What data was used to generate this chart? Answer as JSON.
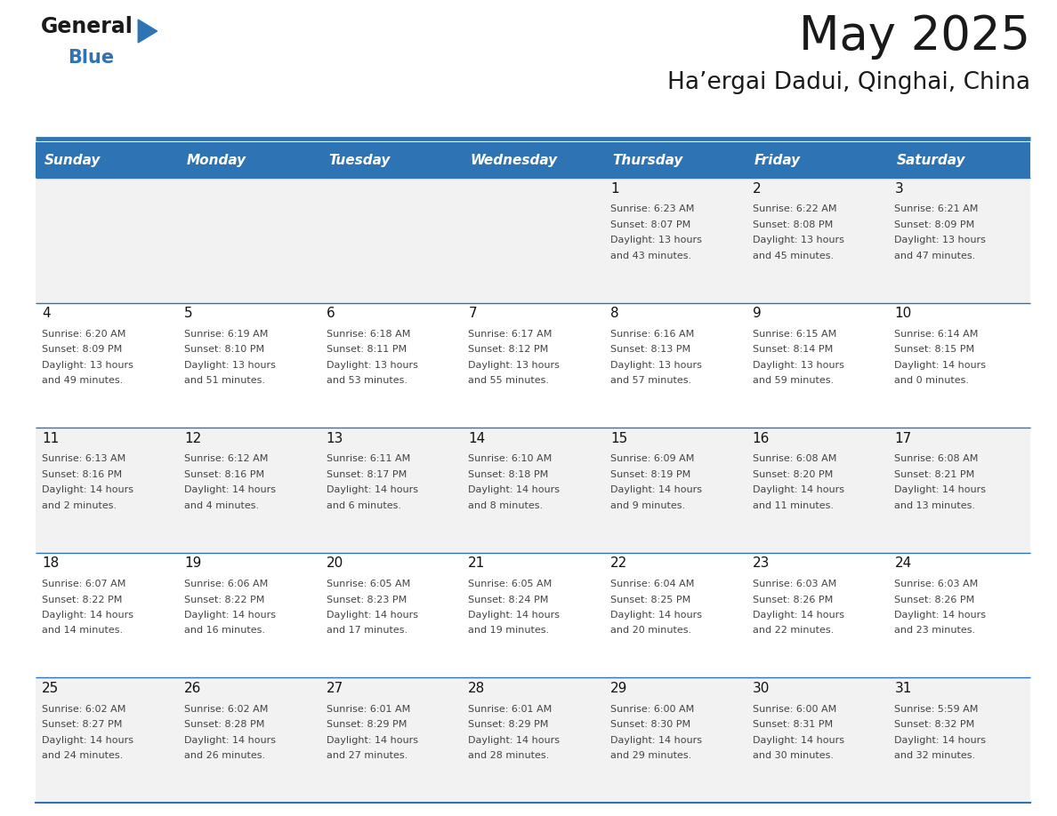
{
  "title": "May 2025",
  "subtitle": "Ha’ergai Dadui, Qinghai, China",
  "days_of_week": [
    "Sunday",
    "Monday",
    "Tuesday",
    "Wednesday",
    "Thursday",
    "Friday",
    "Saturday"
  ],
  "header_bg": "#2E74B5",
  "header_text_color": "#FFFFFF",
  "row_bg_odd": "#F2F2F2",
  "row_bg_even": "#FFFFFF",
  "separator_color": "#2E74B5",
  "background_color": "#FFFFFF",
  "title_color": "#1a1a1a",
  "subtitle_color": "#1a1a1a",
  "logo_text_color": "#1a1a1a",
  "logo_blue_color": "#2E74B5",
  "calendar_data": [
    [
      {
        "day": "",
        "info": ""
      },
      {
        "day": "",
        "info": ""
      },
      {
        "day": "",
        "info": ""
      },
      {
        "day": "",
        "info": ""
      },
      {
        "day": "1",
        "info": "Sunrise: 6:23 AM\nSunset: 8:07 PM\nDaylight: 13 hours\nand 43 minutes."
      },
      {
        "day": "2",
        "info": "Sunrise: 6:22 AM\nSunset: 8:08 PM\nDaylight: 13 hours\nand 45 minutes."
      },
      {
        "day": "3",
        "info": "Sunrise: 6:21 AM\nSunset: 8:09 PM\nDaylight: 13 hours\nand 47 minutes."
      }
    ],
    [
      {
        "day": "4",
        "info": "Sunrise: 6:20 AM\nSunset: 8:09 PM\nDaylight: 13 hours\nand 49 minutes."
      },
      {
        "day": "5",
        "info": "Sunrise: 6:19 AM\nSunset: 8:10 PM\nDaylight: 13 hours\nand 51 minutes."
      },
      {
        "day": "6",
        "info": "Sunrise: 6:18 AM\nSunset: 8:11 PM\nDaylight: 13 hours\nand 53 minutes."
      },
      {
        "day": "7",
        "info": "Sunrise: 6:17 AM\nSunset: 8:12 PM\nDaylight: 13 hours\nand 55 minutes."
      },
      {
        "day": "8",
        "info": "Sunrise: 6:16 AM\nSunset: 8:13 PM\nDaylight: 13 hours\nand 57 minutes."
      },
      {
        "day": "9",
        "info": "Sunrise: 6:15 AM\nSunset: 8:14 PM\nDaylight: 13 hours\nand 59 minutes."
      },
      {
        "day": "10",
        "info": "Sunrise: 6:14 AM\nSunset: 8:15 PM\nDaylight: 14 hours\nand 0 minutes."
      }
    ],
    [
      {
        "day": "11",
        "info": "Sunrise: 6:13 AM\nSunset: 8:16 PM\nDaylight: 14 hours\nand 2 minutes."
      },
      {
        "day": "12",
        "info": "Sunrise: 6:12 AM\nSunset: 8:16 PM\nDaylight: 14 hours\nand 4 minutes."
      },
      {
        "day": "13",
        "info": "Sunrise: 6:11 AM\nSunset: 8:17 PM\nDaylight: 14 hours\nand 6 minutes."
      },
      {
        "day": "14",
        "info": "Sunrise: 6:10 AM\nSunset: 8:18 PM\nDaylight: 14 hours\nand 8 minutes."
      },
      {
        "day": "15",
        "info": "Sunrise: 6:09 AM\nSunset: 8:19 PM\nDaylight: 14 hours\nand 9 minutes."
      },
      {
        "day": "16",
        "info": "Sunrise: 6:08 AM\nSunset: 8:20 PM\nDaylight: 14 hours\nand 11 minutes."
      },
      {
        "day": "17",
        "info": "Sunrise: 6:08 AM\nSunset: 8:21 PM\nDaylight: 14 hours\nand 13 minutes."
      }
    ],
    [
      {
        "day": "18",
        "info": "Sunrise: 6:07 AM\nSunset: 8:22 PM\nDaylight: 14 hours\nand 14 minutes."
      },
      {
        "day": "19",
        "info": "Sunrise: 6:06 AM\nSunset: 8:22 PM\nDaylight: 14 hours\nand 16 minutes."
      },
      {
        "day": "20",
        "info": "Sunrise: 6:05 AM\nSunset: 8:23 PM\nDaylight: 14 hours\nand 17 minutes."
      },
      {
        "day": "21",
        "info": "Sunrise: 6:05 AM\nSunset: 8:24 PM\nDaylight: 14 hours\nand 19 minutes."
      },
      {
        "day": "22",
        "info": "Sunrise: 6:04 AM\nSunset: 8:25 PM\nDaylight: 14 hours\nand 20 minutes."
      },
      {
        "day": "23",
        "info": "Sunrise: 6:03 AM\nSunset: 8:26 PM\nDaylight: 14 hours\nand 22 minutes."
      },
      {
        "day": "24",
        "info": "Sunrise: 6:03 AM\nSunset: 8:26 PM\nDaylight: 14 hours\nand 23 minutes."
      }
    ],
    [
      {
        "day": "25",
        "info": "Sunrise: 6:02 AM\nSunset: 8:27 PM\nDaylight: 14 hours\nand 24 minutes."
      },
      {
        "day": "26",
        "info": "Sunrise: 6:02 AM\nSunset: 8:28 PM\nDaylight: 14 hours\nand 26 minutes."
      },
      {
        "day": "27",
        "info": "Sunrise: 6:01 AM\nSunset: 8:29 PM\nDaylight: 14 hours\nand 27 minutes."
      },
      {
        "day": "28",
        "info": "Sunrise: 6:01 AM\nSunset: 8:29 PM\nDaylight: 14 hours\nand 28 minutes."
      },
      {
        "day": "29",
        "info": "Sunrise: 6:00 AM\nSunset: 8:30 PM\nDaylight: 14 hours\nand 29 minutes."
      },
      {
        "day": "30",
        "info": "Sunrise: 6:00 AM\nSunset: 8:31 PM\nDaylight: 14 hours\nand 30 minutes."
      },
      {
        "day": "31",
        "info": "Sunrise: 5:59 AM\nSunset: 8:32 PM\nDaylight: 14 hours\nand 32 minutes."
      }
    ]
  ]
}
